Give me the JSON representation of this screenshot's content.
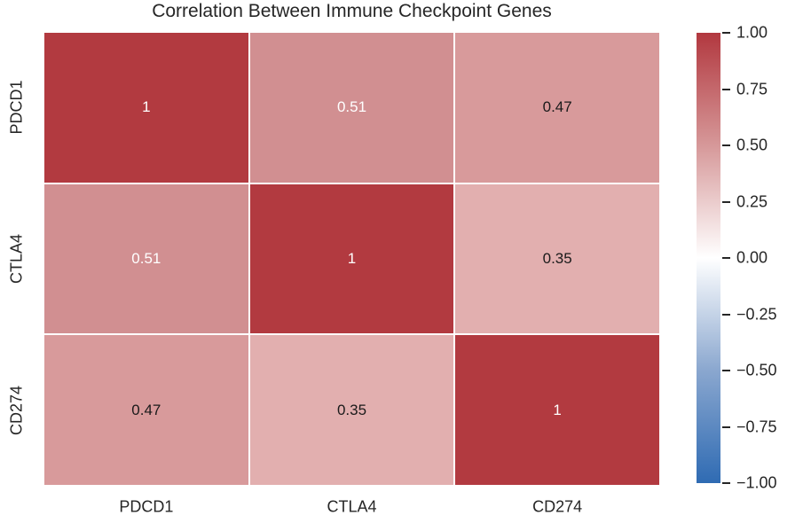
{
  "title": "Correlation Between Immune Checkpoint Genes",
  "chart_data": {
    "type": "heatmap",
    "title": "Correlation Between Immune Checkpoint Genes",
    "categories": [
      "PDCD1",
      "CTLA4",
      "CD274"
    ],
    "x_categories": [
      "PDCD1",
      "CTLA4",
      "CD274"
    ],
    "y_categories": [
      "PDCD1",
      "CTLA4",
      "CD274"
    ],
    "matrix": [
      [
        1,
        0.51,
        0.47
      ],
      [
        0.51,
        1,
        0.35
      ],
      [
        0.47,
        0.35,
        1
      ]
    ],
    "cell_labels": [
      [
        "1",
        "0.51",
        "0.47"
      ],
      [
        "0.51",
        "1",
        "0.35"
      ],
      [
        "0.47",
        "0.35",
        "1"
      ]
    ],
    "cell_colors": [
      [
        "#b23a40",
        "#d18f91",
        "#d89a9b"
      ],
      [
        "#d18f91",
        "#b23a40",
        "#e2afaf"
      ],
      [
        "#d89a9b",
        "#e2afaf",
        "#b23a40"
      ]
    ],
    "cell_text_colors": [
      [
        "#ffffff",
        "#ffffff",
        "#1a1a1a"
      ],
      [
        "#ffffff",
        "#ffffff",
        "#1a1a1a"
      ],
      [
        "#1a1a1a",
        "#1a1a1a",
        "#ffffff"
      ]
    ],
    "colormap": "diverging blue-white-red (vlag)",
    "grid_line_color": "#ffffff",
    "colorbar": {
      "min": -1,
      "max": 1,
      "ticks": [
        {
          "value": 1.0,
          "label": "1.00"
        },
        {
          "value": 0.75,
          "label": "0.75"
        },
        {
          "value": 0.5,
          "label": "0.50"
        },
        {
          "value": 0.25,
          "label": "0.25"
        },
        {
          "value": 0.0,
          "label": "0.00"
        },
        {
          "value": -0.25,
          "label": "−0.25"
        },
        {
          "value": -0.5,
          "label": "−0.50"
        },
        {
          "value": -0.75,
          "label": "−0.75"
        },
        {
          "value": -1.0,
          "label": "−1.00"
        }
      ],
      "gradient": [
        {
          "pos": 0.0,
          "color": "#2f6bb3"
        },
        {
          "pos": 0.25,
          "color": "#8aa7cf"
        },
        {
          "pos": 0.5,
          "color": "#ffffff"
        },
        {
          "pos": 0.75,
          "color": "#d69899"
        },
        {
          "pos": 1.0,
          "color": "#b2383f"
        }
      ]
    }
  }
}
